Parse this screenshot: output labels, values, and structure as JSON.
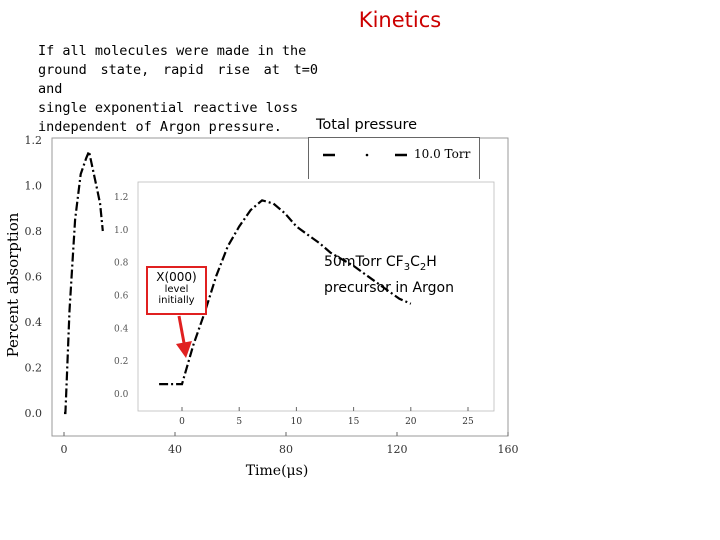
{
  "title": "Kinetics",
  "paragraph": [
    "If all molecules were made in the",
    "ground state, rapid rise at t=0 and",
    "single exponential reactive loss",
    "independent of Argon pressure."
  ],
  "total_pressure_label": "Total pressure",
  "legend_label": "10.0 Torr",
  "annotation_box": {
    "line1": "X(000)",
    "line2": "level",
    "line3": "initially"
  },
  "annotation_note": {
    "line1_prefix": "50mTorr CF",
    "sub1": "3",
    "mid": "C",
    "sub2": "2",
    "suffix": "H",
    "line2": "precursor in Argon"
  },
  "colors": {
    "title": "#cc0000",
    "arrow": "#e02020",
    "data": "#000000"
  },
  "chart_data": [
    {
      "type": "line",
      "ylabel": "Percent absorption",
      "xlabel": "Time(μs)",
      "x_ticks": [
        "0",
        "40",
        "80",
        "120",
        "160"
      ],
      "y_ticks": [
        "0.0",
        "0.2",
        "0.4",
        "0.6",
        "0.8",
        "1.0",
        "1.2"
      ],
      "xlim": [
        0,
        160
      ],
      "ylim": [
        0,
        1.2
      ],
      "series": [
        {
          "style": "dash-dot",
          "points": [
            [
              0,
              0.0
            ],
            [
              0.5,
              0.0
            ],
            [
              1,
              0.15
            ],
            [
              2,
              0.45
            ],
            [
              4,
              0.85
            ],
            [
              6,
              1.05
            ],
            [
              8,
              1.12
            ],
            [
              9,
              1.15
            ],
            [
              12,
              0.98
            ],
            [
              13,
              0.92
            ],
            [
              14,
              0.8
            ]
          ]
        }
      ]
    },
    {
      "type": "line",
      "x_ticks": [
        "0",
        "5",
        "10",
        "15",
        "20",
        "25"
      ],
      "y_ticks": [
        "0.0",
        "0.2",
        "0.4",
        "0.6",
        "0.8",
        "1.0",
        "1.2"
      ],
      "xlim": [
        0,
        25
      ],
      "ylim": [
        0,
        1.2
      ],
      "series": [
        {
          "style": "dash-dot",
          "points": [
            [
              -2,
              0.06
            ],
            [
              0,
              0.06
            ],
            [
              1,
              0.3
            ],
            [
              2,
              0.5
            ],
            [
              3,
              0.72
            ],
            [
              4,
              0.9
            ],
            [
              5,
              1.02
            ],
            [
              6,
              1.12
            ],
            [
              7,
              1.18
            ],
            [
              8,
              1.16
            ],
            [
              9,
              1.1
            ],
            [
              10,
              1.02
            ],
            [
              11,
              0.97
            ],
            [
              12,
              0.92
            ],
            [
              13,
              0.86
            ],
            [
              14,
              0.82
            ],
            [
              15,
              0.78
            ],
            [
              16,
              0.73
            ],
            [
              17,
              0.68
            ],
            [
              18,
              0.63
            ],
            [
              19,
              0.58
            ],
            [
              20,
              0.55
            ]
          ]
        }
      ]
    }
  ]
}
